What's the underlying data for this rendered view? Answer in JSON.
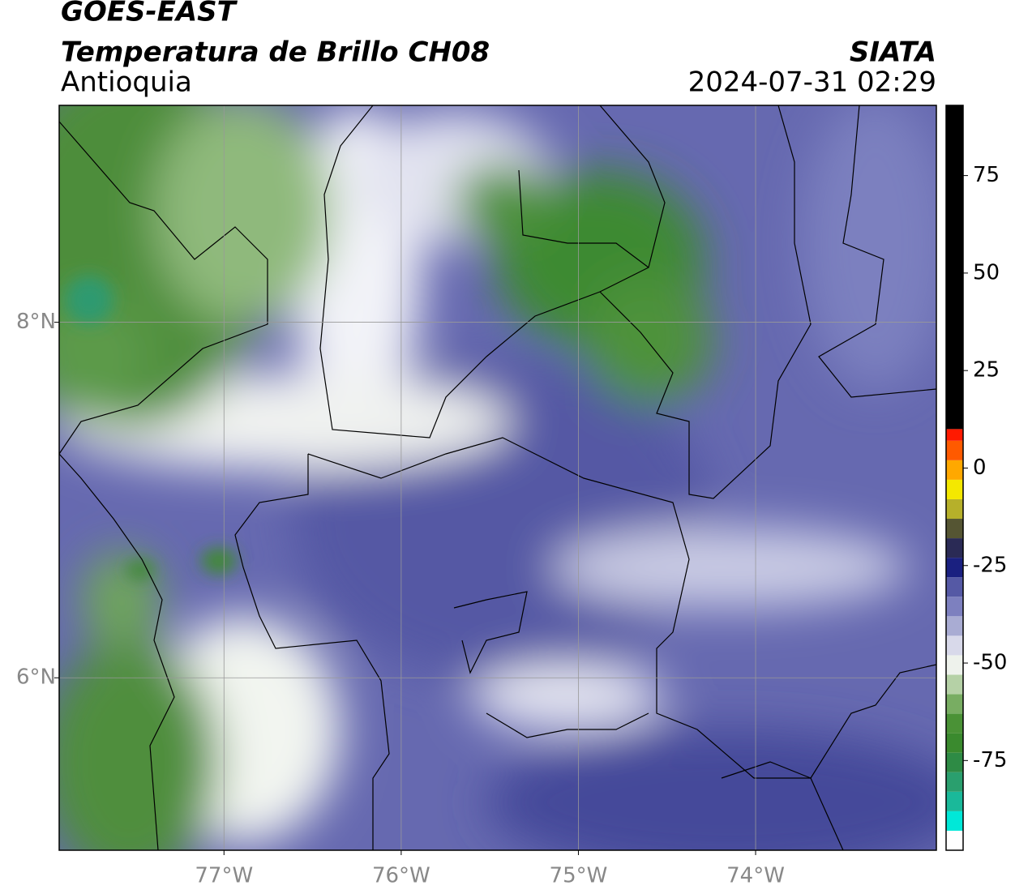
{
  "header": {
    "title": "GOES-EAST",
    "subtitle": "Temperatura de Brillo CH08",
    "region": "Antioquia",
    "source": "SIATA",
    "datetime": "2024-07-31 02:29"
  },
  "map": {
    "xlim": [
      -77.93,
      -72.98
    ],
    "ylim": [
      5.03,
      9.22
    ],
    "xticks": [
      {
        "value": -77,
        "label": "77°W"
      },
      {
        "value": -76,
        "label": "76°W"
      },
      {
        "value": -75,
        "label": "75°W"
      },
      {
        "value": -74,
        "label": "74°W"
      }
    ],
    "yticks": [
      {
        "value": 6,
        "label": "6°N"
      },
      {
        "value": 8,
        "label": "8°N"
      }
    ],
    "grid": true
  },
  "colorbar": {
    "lim": [
      -98,
      93
    ],
    "ticks": [
      -75,
      -50,
      -25,
      0,
      25,
      50,
      75
    ],
    "bounds": [
      -98,
      -93,
      -88,
      -83,
      -78,
      -73,
      -68,
      -63,
      -58,
      -53,
      -48,
      -43,
      -38,
      -33,
      -28,
      -23,
      -18,
      -13,
      -8,
      -3,
      2,
      7,
      10,
      93
    ],
    "colors": [
      "#ffffff",
      "#00e8d8",
      "#1ab99a",
      "#2a9f6e",
      "#2e8b45",
      "#3a8a2e",
      "#4a9236",
      "#78ad62",
      "#b5d1a6",
      "#eef2ec",
      "#d8d9ea",
      "#a9acd3",
      "#7d80bf",
      "#5559a5",
      "#1a2080",
      "#2a2a55",
      "#555533",
      "#b6b02a",
      "#f4e800",
      "#ffa800",
      "#ff5a00",
      "#ff1a00",
      "#000000"
    ]
  }
}
